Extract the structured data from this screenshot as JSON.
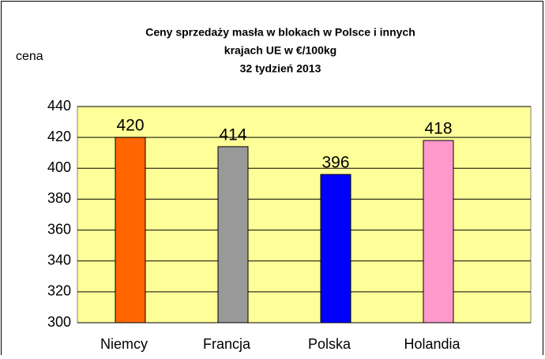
{
  "chart_data": {
    "type": "bar",
    "title": [
      "Ceny sprzedaży masła w blokach w Polsce i  innych",
      "krajach UE w €/100kg",
      "32 tydzień 2013"
    ],
    "y_label": "cena",
    "categories": [
      "Niemcy",
      "Francja",
      "Polska",
      "Holandia"
    ],
    "values": [
      420,
      414,
      396,
      418
    ],
    "colors": [
      "#ff6600",
      "#999999",
      "#0000ff",
      "#ff99cc"
    ],
    "ylim": [
      300,
      440
    ],
    "yticks": [
      300,
      320,
      340,
      360,
      380,
      400,
      420,
      440
    ],
    "grid": true
  }
}
